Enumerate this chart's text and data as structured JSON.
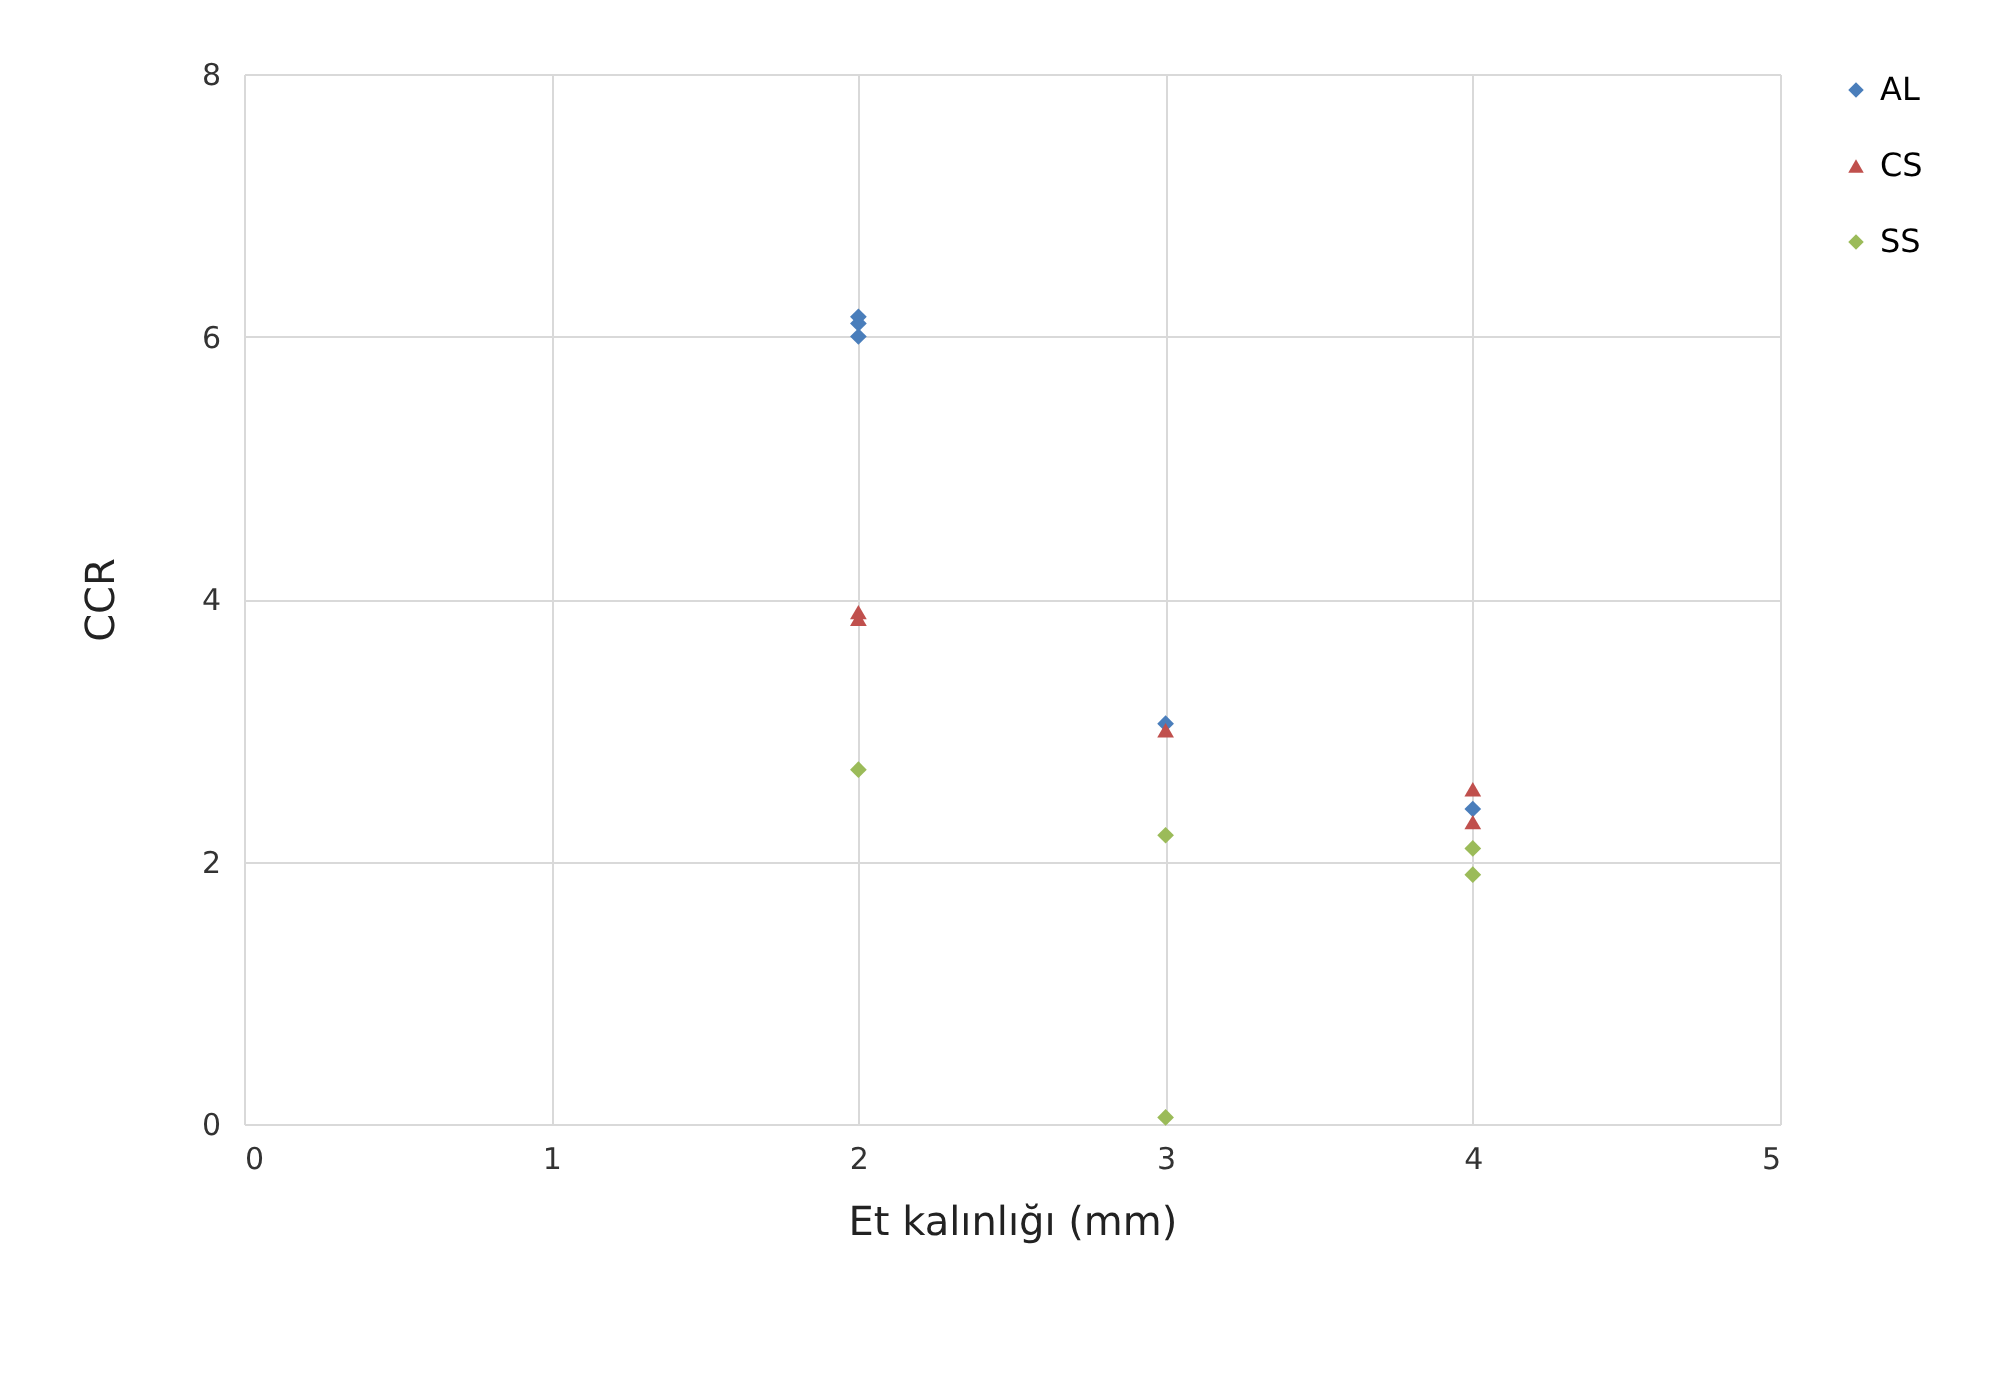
{
  "chart_data": {
    "type": "scatter",
    "xlabel": "Et kalınlığı (mm)",
    "ylabel": "CCR",
    "xlim": [
      0,
      5
    ],
    "xticks": [
      0,
      1,
      2,
      3,
      4,
      5
    ],
    "ylim": [
      0,
      8
    ],
    "yticks": [
      0,
      2,
      4,
      6,
      8
    ],
    "grid": true,
    "legend": "right",
    "series": [
      {
        "name": "AL",
        "color": "#4a7ebb",
        "marker": "diamond",
        "x": [
          2,
          2,
          2,
          3,
          4
        ],
        "values": [
          6.15,
          6.1,
          6.0,
          3.05,
          2.4
        ]
      },
      {
        "name": "CS",
        "color": "#c0504d",
        "marker": "triangle",
        "x": [
          2,
          2,
          3,
          4,
          4
        ],
        "values": [
          3.9,
          3.85,
          3.0,
          2.55,
          2.3
        ]
      },
      {
        "name": "SS",
        "color": "#9bbb59",
        "marker": "diamond",
        "x": [
          2,
          3,
          3,
          4,
          4
        ],
        "values": [
          2.7,
          2.2,
          0.05,
          2.1,
          1.9
        ]
      }
    ]
  }
}
